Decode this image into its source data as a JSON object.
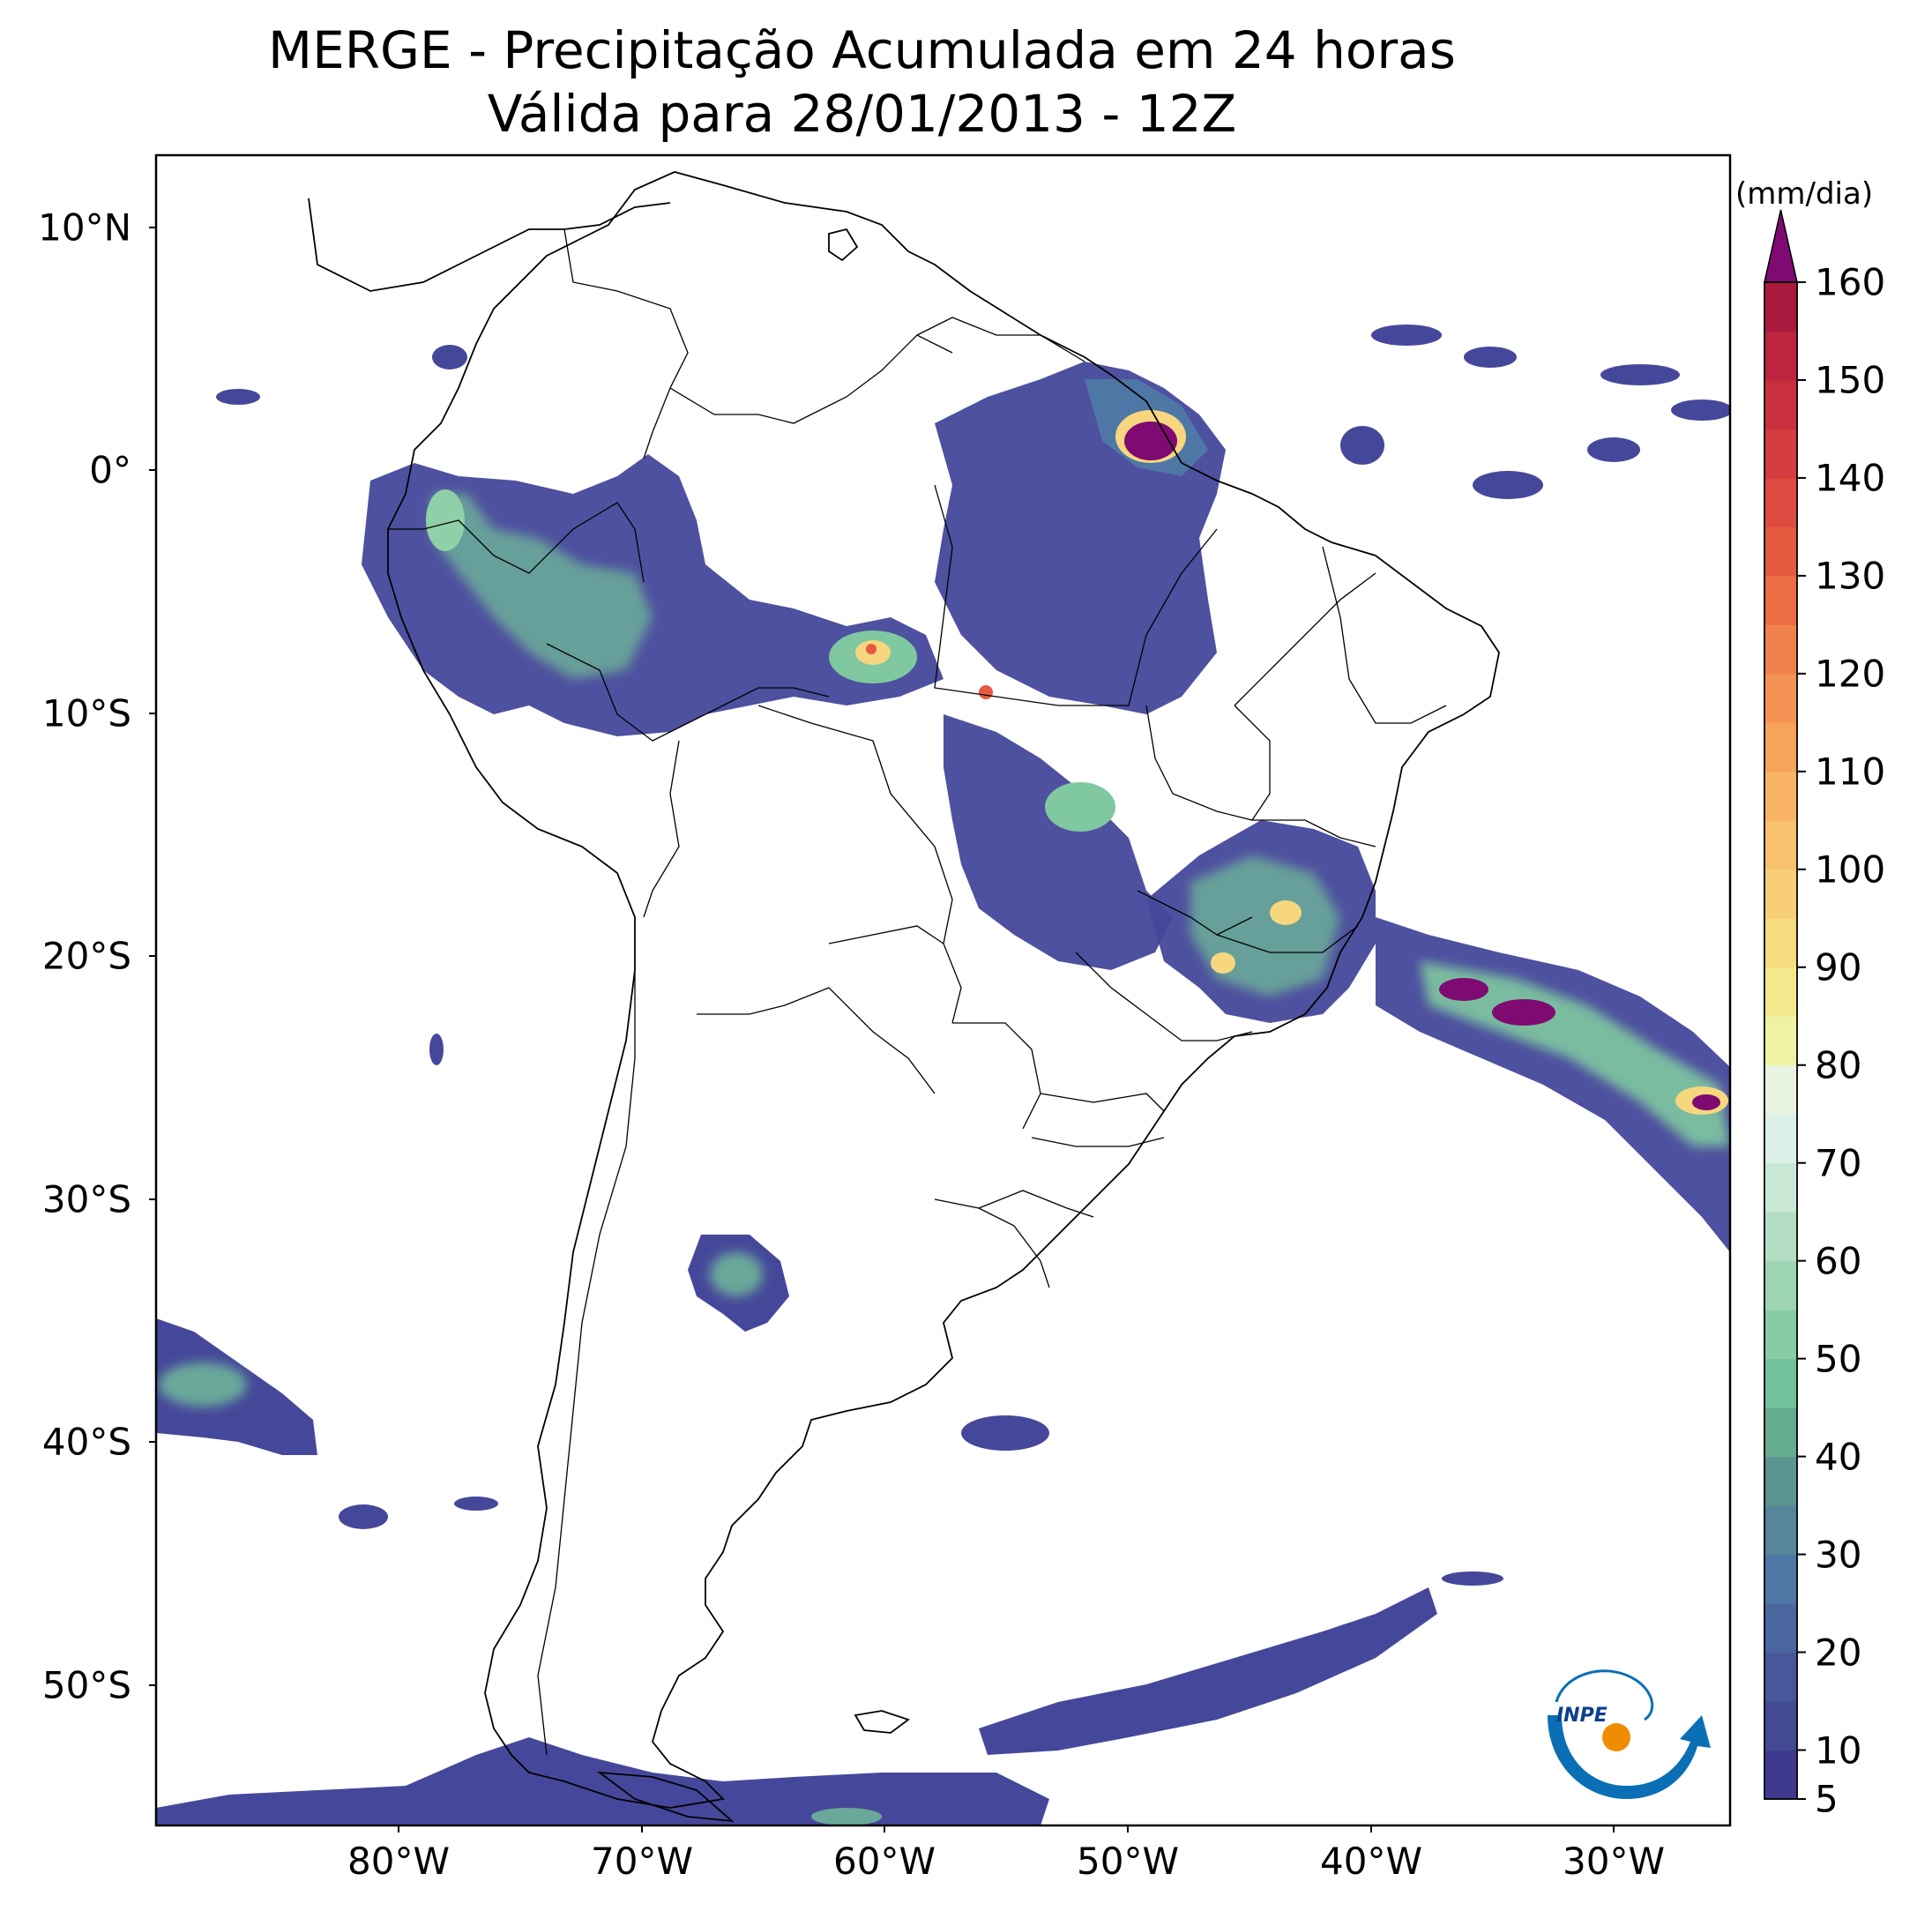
{
  "title": {
    "line1": "MERGE - Precipitação Acumulada em 24 horas",
    "line2": "Válida para 28/01/2013 - 12Z"
  },
  "lat_ticks": [
    "10°N",
    "0°",
    "10°S",
    "20°S",
    "30°S",
    "40°S",
    "50°S"
  ],
  "lon_ticks": [
    "80°W",
    "70°W",
    "60°W",
    "50°W",
    "40°W",
    "30°W"
  ],
  "colorbar": {
    "unit": "(mm/dia)",
    "tick_labels": [
      "5",
      "10",
      "20",
      "30",
      "40",
      "50",
      "60",
      "70",
      "80",
      "90",
      "100",
      "110",
      "120",
      "130",
      "140",
      "150",
      "160"
    ],
    "levels": [
      5,
      10,
      15,
      20,
      25,
      30,
      35,
      40,
      45,
      50,
      55,
      60,
      65,
      70,
      75,
      80,
      85,
      90,
      95,
      100,
      105,
      110,
      115,
      120,
      125,
      130,
      135,
      140,
      145,
      150,
      155,
      160
    ],
    "extend": "max",
    "colors": [
      "#3f3a8f",
      "#424a94",
      "#47579a",
      "#4a67a0",
      "#4f77a6",
      "#55869a",
      "#5a9590",
      "#64ac8f",
      "#72c09c",
      "#86cca6",
      "#9dd5b4",
      "#b3dec4",
      "#c9e8d6",
      "#dbf0e6",
      "#e8f3e1",
      "#eef3a4",
      "#f3e88c",
      "#f7dc80",
      "#f8cf78",
      "#f9c26f",
      "#f9b366",
      "#f8a35c",
      "#f59354",
      "#f1814c",
      "#ec6e45",
      "#e55a40",
      "#dd4a3f",
      "#d43d40",
      "#c9303f",
      "#bc243f",
      "#aa1a3e"
    ],
    "over_color": "#7e0a72"
  },
  "logo": {
    "text": "INPE"
  },
  "colors": {
    "land_outline": "#000000",
    "low_precip": "#3f3a8f",
    "mid_precip": "#7fc8a0",
    "high_precip": "#f6d77f",
    "extreme_precip": "#7e0a72"
  }
}
